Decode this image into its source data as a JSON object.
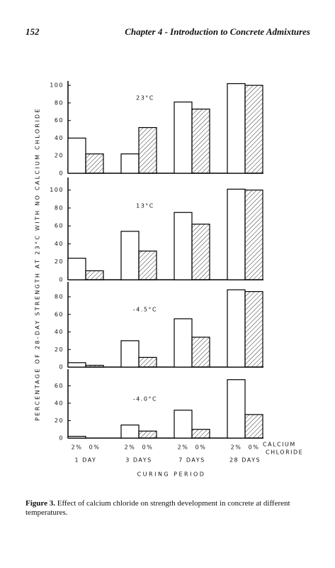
{
  "header": {
    "page": "152",
    "title": "Chapter 4 - Introduction to Concrete Admixtures"
  },
  "figure": {
    "y_label": "PERCENTAGE OF 28-DAY STRENGTH AT 23°C WITH NO CALCIUM CHLORIDE",
    "x_label": "CURING PERIOD",
    "series_label": [
      "CALCIUM",
      "CHLORIDE"
    ]
  },
  "chart_data": [
    {
      "type": "bar",
      "title": "23°C",
      "ylim": [
        0,
        105
      ],
      "yticks": [
        0,
        20,
        40,
        60,
        80,
        100
      ],
      "series": [
        {
          "color": "#ffffff",
          "values": [
            40,
            22,
            81,
            102
          ]
        },
        {
          "color": "#000000",
          "pattern": "hatch",
          "values": [
            22,
            52,
            73,
            100
          ]
        }
      ]
    },
    {
      "type": "bar",
      "title": "13°C",
      "ylim": [
        0,
        114
      ],
      "yticks": [
        0,
        20,
        40,
        60,
        80,
        100
      ],
      "series": [
        {
          "color": "#ffffff",
          "values": [
            24,
            54,
            75,
            101
          ]
        },
        {
          "color": "#000000",
          "pattern": "hatch",
          "values": [
            10,
            32,
            62,
            100
          ]
        }
      ]
    },
    {
      "type": "bar",
      "title": "-4.5°C",
      "ylim": [
        0,
        97
      ],
      "yticks": [
        0,
        20,
        40,
        60,
        80
      ],
      "series": [
        {
          "color": "#ffffff",
          "values": [
            5,
            30,
            55,
            88
          ]
        },
        {
          "color": "#000000",
          "pattern": "hatch",
          "values": [
            2,
            11,
            34,
            86
          ]
        }
      ]
    },
    {
      "type": "bar",
      "title": "-4.0°C",
      "ylim": [
        0,
        79
      ],
      "yticks": [
        0,
        20,
        40,
        60
      ],
      "categories": [
        "1 DAY",
        "3 DAYS",
        "7 DAYS",
        "28 DAYS"
      ],
      "series": [
        {
          "name": "2%",
          "color": "#ffffff",
          "values": [
            2,
            15,
            32,
            67
          ]
        },
        {
          "name": "0%",
          "color": "#000000",
          "pattern": "hatch",
          "values": [
            0,
            8,
            10,
            27
          ]
        }
      ]
    }
  ],
  "caption": {
    "label": "Figure 3.",
    "text": "Effect of calcium chloride on strength development in concrete at different temperatures."
  }
}
